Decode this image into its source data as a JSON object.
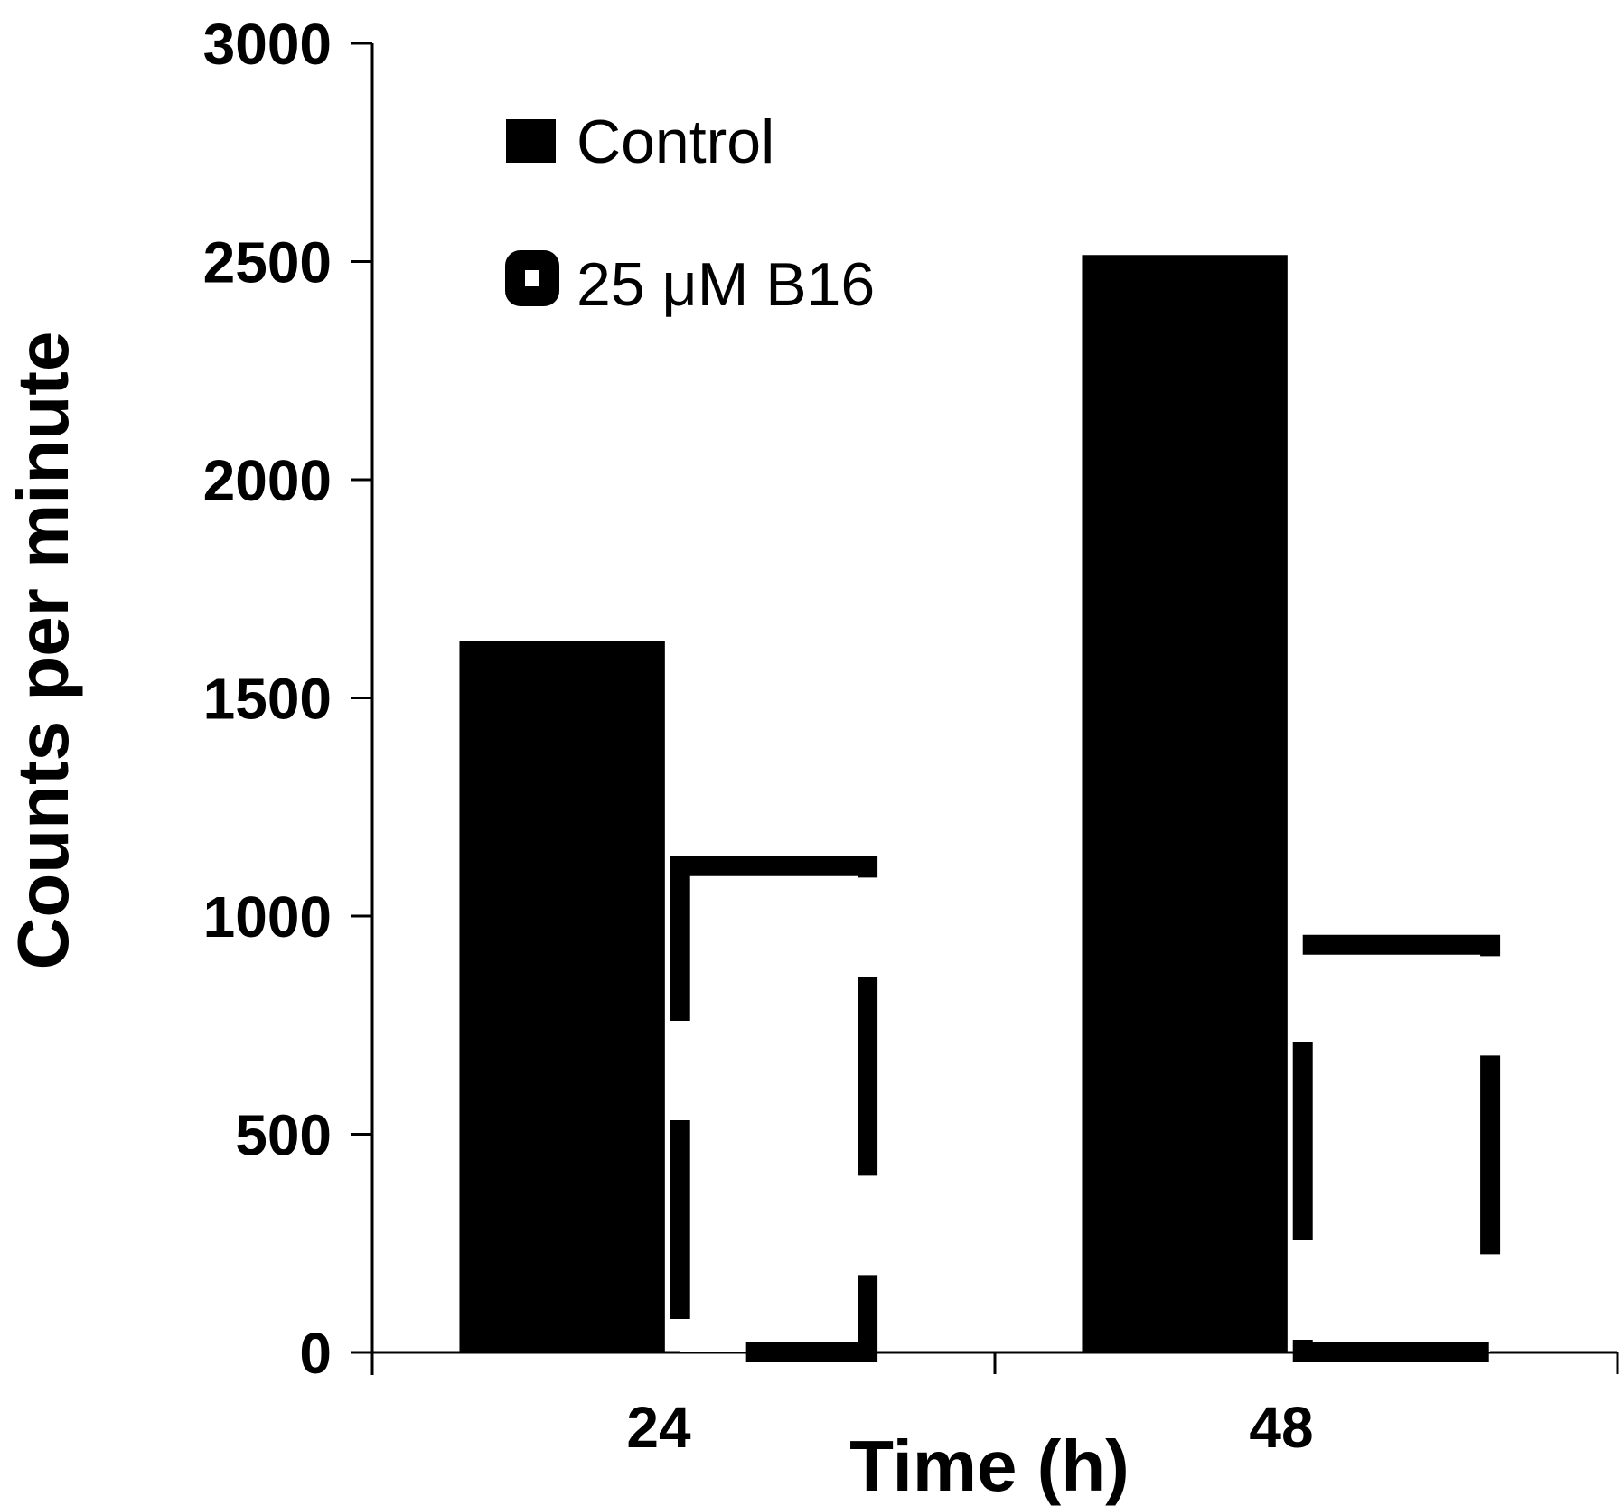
{
  "chart_data": {
    "type": "bar",
    "title": "",
    "xlabel": "Time (h)",
    "ylabel": "Counts per minute",
    "categories": [
      "24",
      "48"
    ],
    "series": [
      {
        "name": "Control",
        "values": [
          1630,
          2515
        ],
        "style": "solid",
        "color": "#000000"
      },
      {
        "name": "25 μM B16",
        "values": [
          1135,
          955
        ],
        "style": "dashed-outline",
        "color": "#000000"
      }
    ],
    "ylim": [
      0,
      3000
    ],
    "yticks": [
      0,
      500,
      1000,
      1500,
      2000,
      2500,
      3000
    ],
    "yticklabels": [
      "0",
      "500",
      "1000",
      "1500",
      "2000",
      "2500",
      "3000"
    ],
    "grid": false,
    "legend_position": "top-left"
  }
}
